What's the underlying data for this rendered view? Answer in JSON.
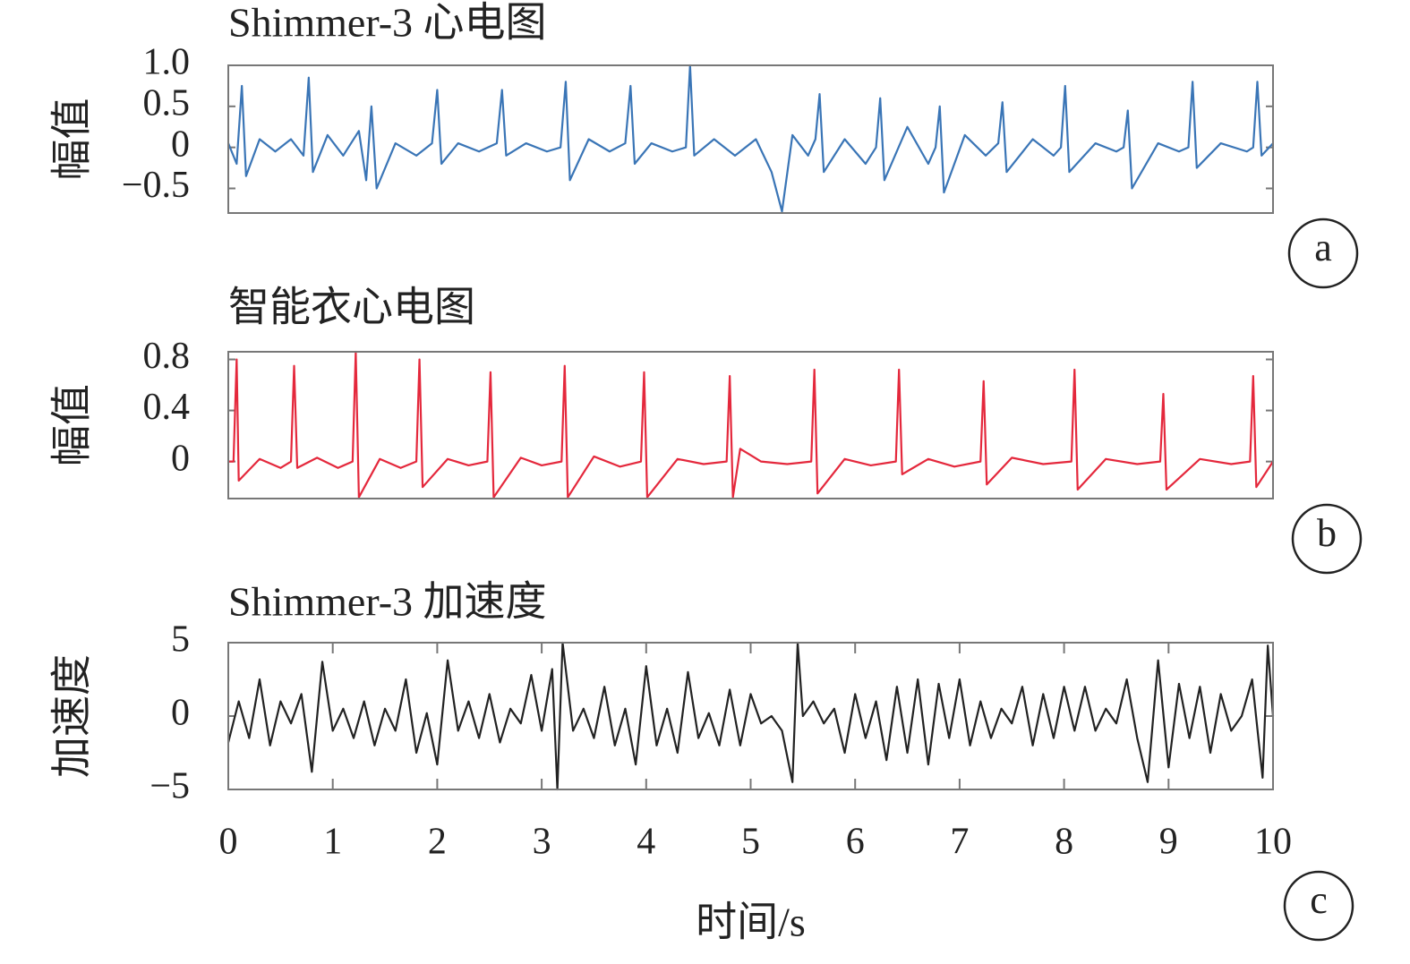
{
  "chart_data": [
    {
      "type": "line",
      "title": "Shimmer-3 心电图",
      "ylabel": "幅值",
      "panel_label": "a",
      "color": "#3a75b6",
      "xlim": [
        0,
        10
      ],
      "ylim": [
        -0.8,
        1.0
      ],
      "yticks": [
        {
          "value": 1.0,
          "label": "1.0"
        },
        0.5,
        0,
        {
          "value": -0.5,
          "label": "−0.5"
        }
      ],
      "x": [
        0,
        0.08,
        0.13,
        0.17,
        0.3,
        0.45,
        0.6,
        0.72,
        0.77,
        0.81,
        0.95,
        1.1,
        1.25,
        1.32,
        1.37,
        1.42,
        1.6,
        1.8,
        1.95,
        2.0,
        2.04,
        2.2,
        2.4,
        2.57,
        2.62,
        2.66,
        2.85,
        3.05,
        3.18,
        3.23,
        3.27,
        3.45,
        3.65,
        3.8,
        3.85,
        3.89,
        4.05,
        4.25,
        4.38,
        4.42,
        4.46,
        4.65,
        4.85,
        5.05,
        5.2,
        5.3,
        5.4,
        5.55,
        5.62,
        5.66,
        5.7,
        5.9,
        6.1,
        6.2,
        6.24,
        6.28,
        6.5,
        6.7,
        6.77,
        6.81,
        6.85,
        7.05,
        7.25,
        7.37,
        7.41,
        7.45,
        7.7,
        7.9,
        7.97,
        8.01,
        8.05,
        8.3,
        8.5,
        8.57,
        8.61,
        8.65,
        8.9,
        9.1,
        9.19,
        9.23,
        9.27,
        9.5,
        9.75,
        9.81,
        9.85,
        9.89,
        10
      ],
      "values": [
        0.05,
        -0.2,
        0.75,
        -0.35,
        0.1,
        -0.05,
        0.1,
        -0.1,
        0.85,
        -0.3,
        0.15,
        -0.1,
        0.2,
        -0.4,
        0.5,
        -0.5,
        0.05,
        -0.1,
        0.05,
        0.7,
        -0.2,
        0.05,
        -0.05,
        0.05,
        0.7,
        -0.1,
        0.05,
        -0.05,
        0.0,
        0.8,
        -0.4,
        0.1,
        -0.05,
        0.05,
        0.75,
        -0.2,
        0.05,
        -0.05,
        0.0,
        1.0,
        -0.1,
        0.1,
        -0.1,
        0.1,
        -0.3,
        -0.78,
        0.15,
        -0.1,
        0.1,
        0.65,
        -0.3,
        0.1,
        -0.2,
        0.0,
        0.6,
        -0.4,
        0.25,
        -0.2,
        0.0,
        0.5,
        -0.55,
        0.15,
        -0.1,
        0.05,
        0.55,
        -0.3,
        0.1,
        -0.1,
        0.0,
        0.75,
        -0.3,
        0.05,
        -0.05,
        0.0,
        0.45,
        -0.5,
        0.05,
        -0.05,
        0.0,
        0.8,
        -0.25,
        0.05,
        -0.05,
        0.0,
        0.8,
        -0.1,
        0.05
      ]
    },
    {
      "type": "line",
      "title": "智能衣心电图",
      "ylabel": "幅值",
      "panel_label": "b",
      "color": "#e4283c",
      "xlim": [
        0,
        10
      ],
      "ylim": [
        -0.29,
        0.86
      ],
      "yticks": [
        0.8,
        0.4,
        0
      ],
      "x": [
        0,
        0.05,
        0.08,
        0.1,
        0.3,
        0.5,
        0.6,
        0.63,
        0.66,
        0.85,
        1.05,
        1.19,
        1.22,
        1.25,
        1.45,
        1.65,
        1.8,
        1.83,
        1.86,
        2.1,
        2.3,
        2.48,
        2.51,
        2.54,
        2.8,
        3.0,
        3.19,
        3.22,
        3.25,
        3.5,
        3.75,
        3.95,
        3.98,
        4.01,
        4.3,
        4.55,
        4.77,
        4.8,
        4.83,
        4.9,
        5.1,
        5.35,
        5.58,
        5.61,
        5.64,
        5.9,
        6.15,
        6.39,
        6.42,
        6.45,
        6.7,
        6.95,
        7.2,
        7.23,
        7.26,
        7.5,
        7.8,
        8.07,
        8.1,
        8.13,
        8.4,
        8.7,
        8.92,
        8.95,
        8.98,
        9.3,
        9.6,
        9.78,
        9.81,
        9.84,
        10
      ],
      "values": [
        0.0,
        0.0,
        0.8,
        -0.15,
        0.02,
        -0.05,
        0.0,
        0.75,
        -0.05,
        0.03,
        -0.05,
        0.0,
        0.86,
        -0.28,
        0.02,
        -0.05,
        0.0,
        0.8,
        -0.2,
        0.02,
        -0.03,
        0.0,
        0.7,
        -0.28,
        0.03,
        -0.03,
        0.0,
        0.75,
        -0.28,
        0.04,
        -0.04,
        0.0,
        0.7,
        -0.28,
        0.02,
        -0.02,
        0.0,
        0.67,
        -0.28,
        0.1,
        0.0,
        -0.02,
        0.0,
        0.72,
        -0.25,
        0.02,
        -0.03,
        0.0,
        0.72,
        -0.1,
        0.02,
        -0.04,
        0.0,
        0.63,
        -0.18,
        0.03,
        -0.02,
        0.0,
        0.72,
        -0.22,
        0.02,
        -0.02,
        0.0,
        0.53,
        -0.22,
        0.02,
        -0.02,
        0.0,
        0.67,
        -0.2,
        0.0
      ]
    },
    {
      "type": "line",
      "title": "Shimmer-3 加速度",
      "ylabel": "加速度",
      "panel_label": "c",
      "color": "#222222",
      "xlabel": "时间/s",
      "xlim": [
        0,
        10
      ],
      "ylim": [
        -5,
        5
      ],
      "xticks": [
        0,
        1,
        2,
        3,
        4,
        5,
        6,
        7,
        8,
        9,
        10
      ],
      "yticks": [
        5,
        0,
        {
          "value": -5,
          "label": "−5"
        }
      ],
      "x": [
        0,
        0.1,
        0.2,
        0.3,
        0.4,
        0.5,
        0.6,
        0.7,
        0.8,
        0.9,
        1.0,
        1.1,
        1.2,
        1.3,
        1.4,
        1.5,
        1.6,
        1.7,
        1.8,
        1.9,
        2.0,
        2.1,
        2.2,
        2.3,
        2.4,
        2.5,
        2.6,
        2.7,
        2.8,
        2.9,
        3.0,
        3.1,
        3.15,
        3.2,
        3.3,
        3.4,
        3.5,
        3.6,
        3.7,
        3.8,
        3.9,
        4.0,
        4.1,
        4.2,
        4.3,
        4.4,
        4.5,
        4.6,
        4.7,
        4.8,
        4.9,
        5.0,
        5.1,
        5.2,
        5.3,
        5.4,
        5.45,
        5.5,
        5.6,
        5.7,
        5.8,
        5.9,
        6.0,
        6.1,
        6.2,
        6.3,
        6.4,
        6.5,
        6.6,
        6.7,
        6.8,
        6.9,
        7.0,
        7.1,
        7.2,
        7.3,
        7.4,
        7.5,
        7.6,
        7.7,
        7.8,
        7.9,
        8.0,
        8.1,
        8.2,
        8.3,
        8.4,
        8.5,
        8.6,
        8.7,
        8.8,
        8.9,
        9.0,
        9.1,
        9.2,
        9.3,
        9.4,
        9.5,
        9.6,
        9.7,
        9.8,
        9.9,
        9.95,
        10
      ],
      "values": [
        -1.8,
        1.0,
        -1.5,
        2.5,
        -2.0,
        1.0,
        -0.5,
        1.5,
        -3.8,
        3.7,
        -1.0,
        0.5,
        -1.5,
        1.0,
        -2.0,
        0.5,
        -1.0,
        2.5,
        -2.5,
        0.2,
        -3.3,
        3.8,
        -1.0,
        1.0,
        -1.5,
        1.5,
        -1.8,
        0.5,
        -0.5,
        2.8,
        -1.0,
        3.2,
        -5.0,
        5.0,
        -1.0,
        0.5,
        -1.5,
        2.0,
        -2.0,
        0.5,
        -3.3,
        3.4,
        -2.0,
        0.5,
        -2.5,
        3.0,
        -1.5,
        0.2,
        -2.0,
        1.8,
        -2.0,
        1.5,
        -0.5,
        0.0,
        -1.0,
        -4.5,
        5.0,
        0.0,
        1.0,
        -0.5,
        0.5,
        -2.5,
        1.5,
        -1.5,
        1.0,
        -3.0,
        2.0,
        -2.5,
        2.5,
        -3.3,
        2.2,
        -1.5,
        2.5,
        -2.0,
        1.0,
        -1.5,
        0.5,
        -0.5,
        2.0,
        -2.0,
        1.5,
        -1.5,
        2.0,
        -1.0,
        2.0,
        -1.0,
        0.5,
        -0.5,
        2.5,
        -1.5,
        -4.5,
        3.8,
        -3.5,
        2.2,
        -1.5,
        2.0,
        -2.5,
        1.5,
        -1.0,
        0.0,
        2.5,
        -4.2,
        4.8,
        0.0
      ]
    }
  ]
}
